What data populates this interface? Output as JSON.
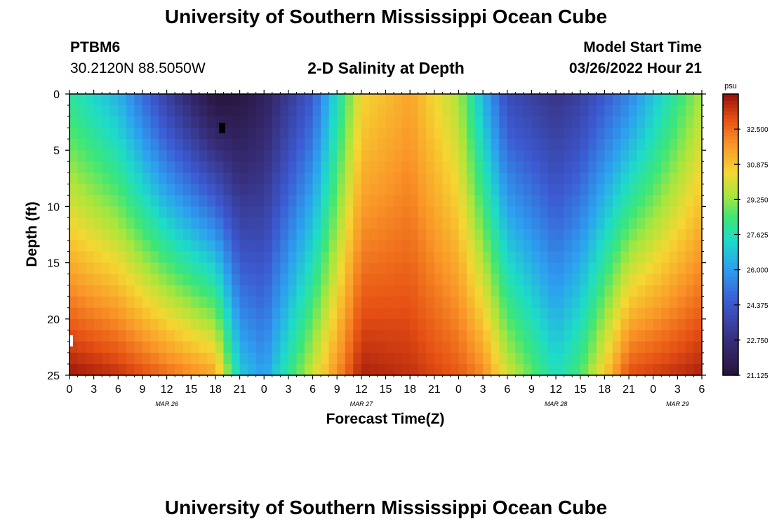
{
  "page": {
    "title": "University of Southern Mississippi Ocean Cube",
    "footer_title": "University of Southern Mississippi Ocean Cube"
  },
  "station": {
    "id": "PTBM6",
    "coords": "30.2120N  88.5050W"
  },
  "model": {
    "label": "Model Start Time",
    "datetime": "03/26/2022 Hour 21"
  },
  "chart_data": {
    "type": "heatmap",
    "title": "2-D Salinity at Depth",
    "xlabel": "Forecast Time(Z)",
    "ylabel": "Depth (ft)",
    "x_hours": [
      0,
      78
    ],
    "ylim": [
      0,
      25
    ],
    "y_ticks": [
      "0",
      "5",
      "10",
      "15",
      "20",
      "25"
    ],
    "x_ticks": [
      "0",
      "3",
      "6",
      "9",
      "12",
      "15",
      "18",
      "21",
      "0",
      "3",
      "6",
      "9",
      "12",
      "15",
      "18",
      "21",
      "0",
      "3",
      "6",
      "9",
      "12",
      "15",
      "18",
      "21",
      "0",
      "3",
      "6"
    ],
    "date_labels": [
      {
        "label": "MAR 26",
        "hour": 12
      },
      {
        "label": "MAR 27",
        "hour": 36
      },
      {
        "label": "MAR 28",
        "hour": 60
      },
      {
        "label": "MAR 29",
        "hour": 75
      }
    ],
    "colorbar": {
      "unit": "psu",
      "min": 21.125,
      "max": 34.125,
      "ticks": [
        "32.500",
        "30.875",
        "29.250",
        "27.625",
        "26.000",
        "24.375",
        "22.750",
        "21.125"
      ]
    },
    "salinity_profile": [
      {
        "hour": 0,
        "surface": 28.0,
        "bottom": 34.0
      },
      {
        "hour": 6,
        "surface": 26.5,
        "bottom": 33.5
      },
      {
        "hour": 12,
        "surface": 23.5,
        "bottom": 32.5
      },
      {
        "hour": 18,
        "surface": 21.2,
        "bottom": 31.5
      },
      {
        "hour": 21,
        "surface": 21.3,
        "bottom": 27.0
      },
      {
        "hour": 24,
        "surface": 22.0,
        "bottom": 26.0
      },
      {
        "hour": 30,
        "surface": 24.5,
        "bottom": 30.0
      },
      {
        "hour": 36,
        "surface": 30.5,
        "bottom": 33.8
      },
      {
        "hour": 42,
        "surface": 31.5,
        "bottom": 33.5
      },
      {
        "hour": 48,
        "surface": 29.5,
        "bottom": 32.8
      },
      {
        "hour": 51,
        "surface": 26.5,
        "bottom": 32.0
      },
      {
        "hour": 54,
        "surface": 24.0,
        "bottom": 30.0
      },
      {
        "hour": 60,
        "surface": 23.0,
        "bottom": 27.5
      },
      {
        "hour": 63,
        "surface": 23.5,
        "bottom": 28.5
      },
      {
        "hour": 69,
        "surface": 25.5,
        "bottom": 33.0
      },
      {
        "hour": 78,
        "surface": 29.5,
        "bottom": 33.8
      }
    ]
  }
}
